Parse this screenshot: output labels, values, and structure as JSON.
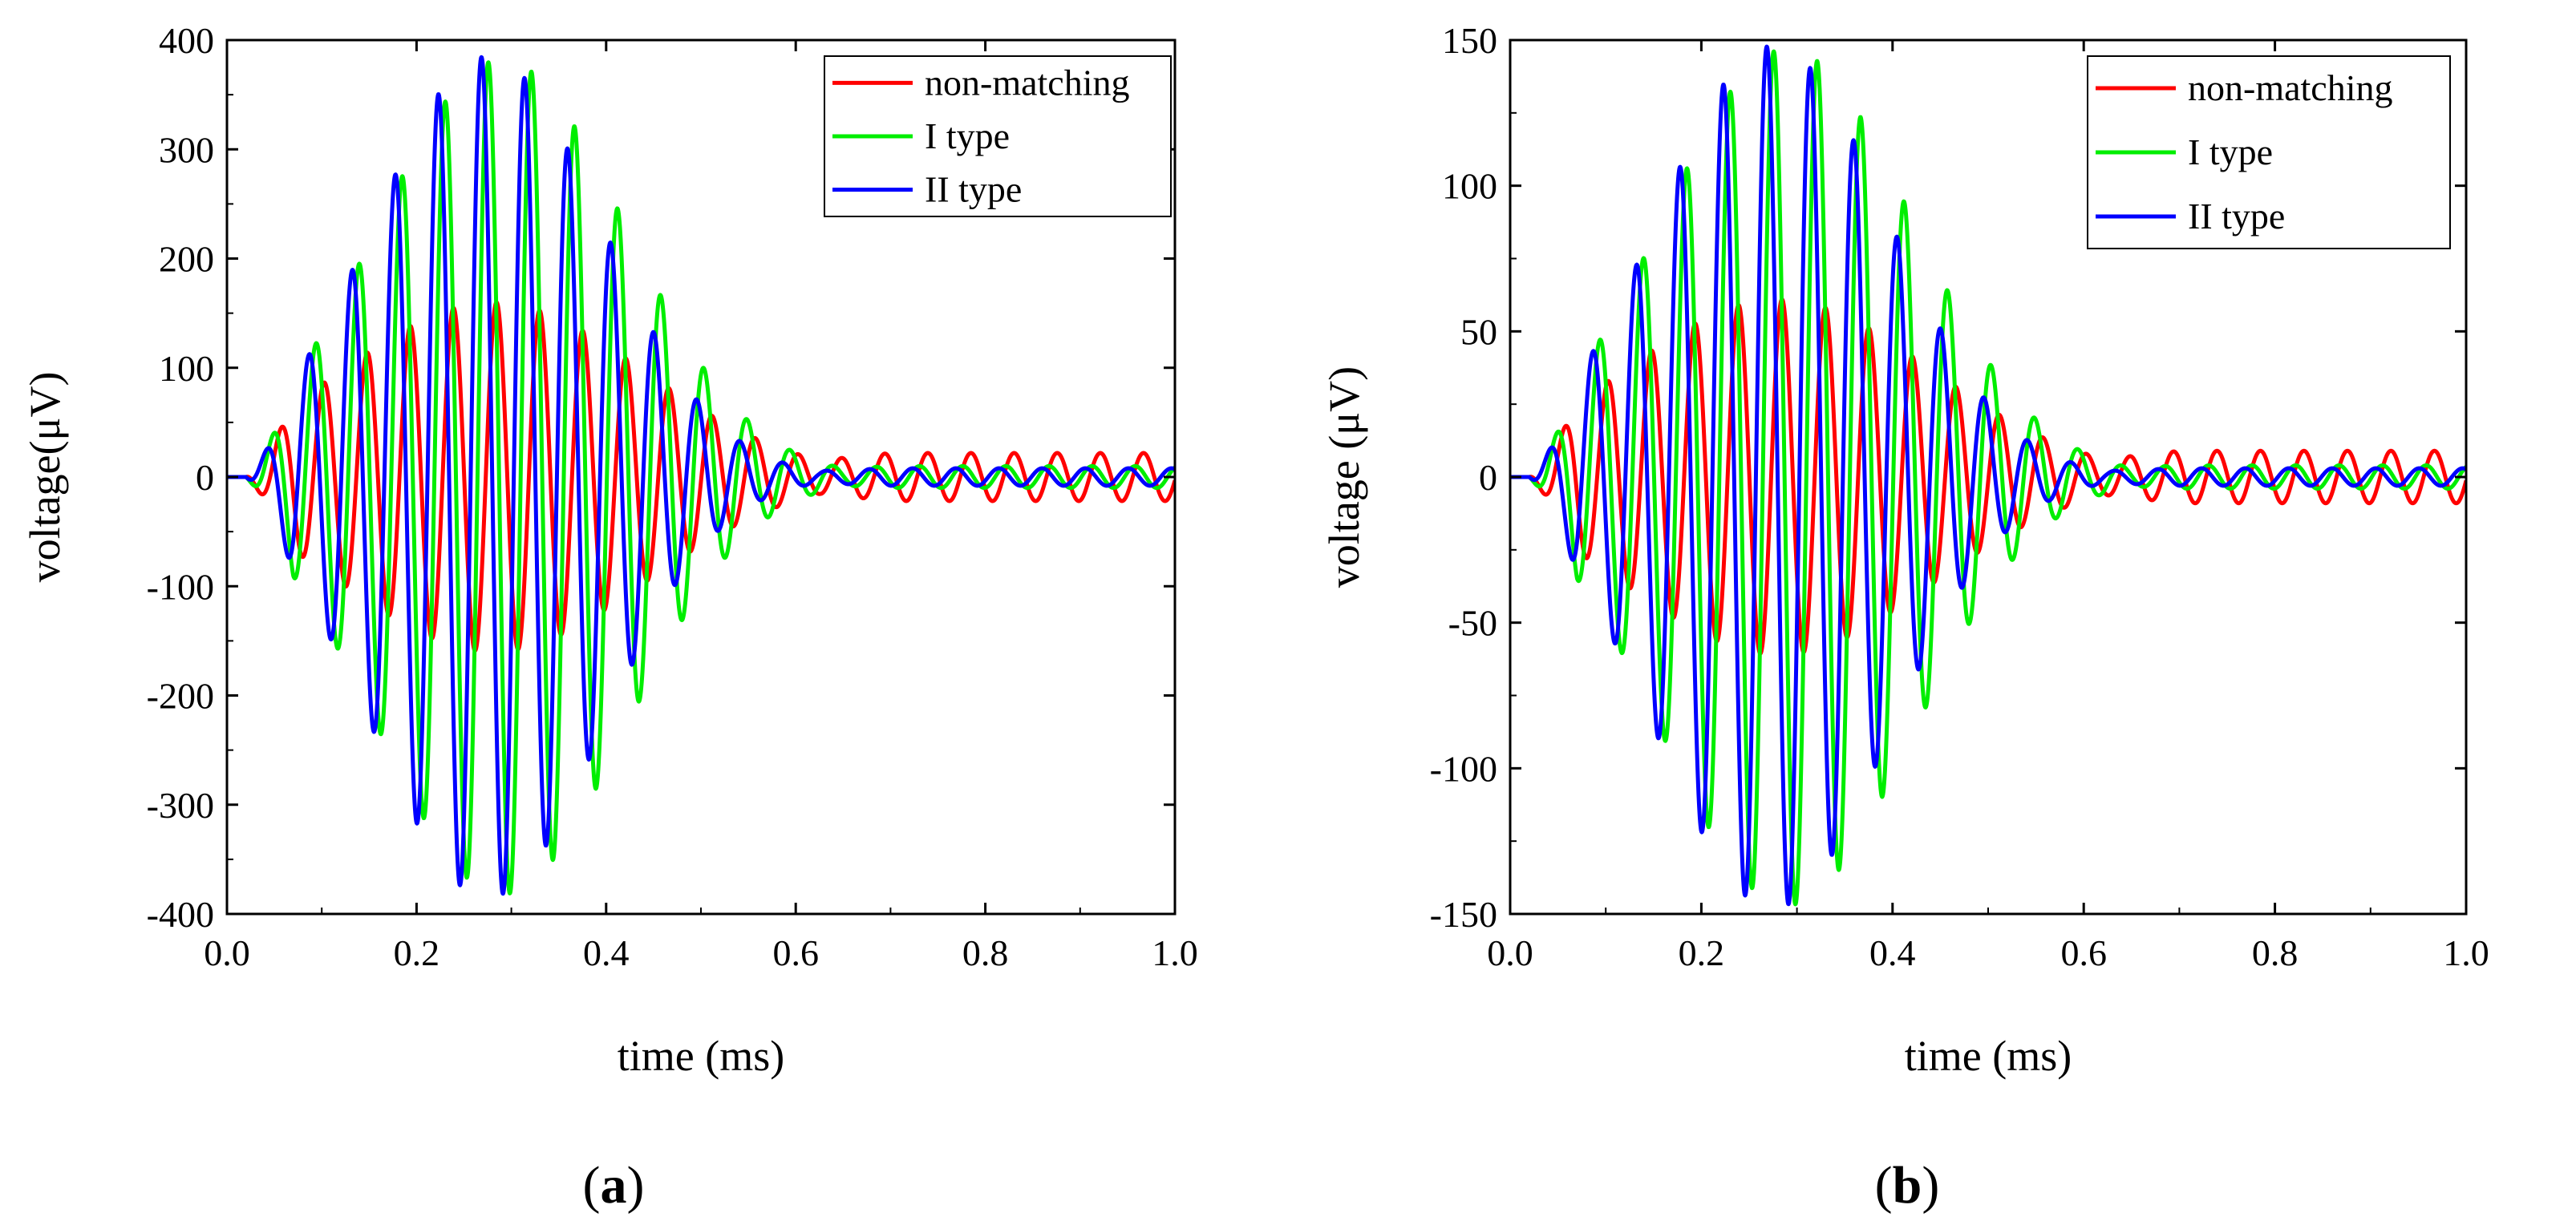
{
  "chart_data": [
    {
      "type": "line",
      "caption": "(a)",
      "caption_letter": "a",
      "title": "",
      "xlabel": "time (ms)",
      "ylabel": "voltage(μV)",
      "xlim": [
        0.0,
        1.0
      ],
      "ylim": [
        -400,
        400
      ],
      "xticks": [
        "0.0",
        "0.2",
        "0.4",
        "0.6",
        "0.8",
        "1.0"
      ],
      "yticks": [
        "400",
        "300",
        "200",
        "100",
        "0",
        "-100",
        "-200",
        "-300",
        "-400"
      ],
      "legend_position": "top-right",
      "series": [
        {
          "name": "non-matching",
          "color": "#ff0000",
          "amplitude": 160,
          "peak_time": 0.28,
          "width": 0.16,
          "period": 0.0455,
          "phase": 0.0,
          "tail": 22
        },
        {
          "name": "I type",
          "color": "#00ee00",
          "amplitude": 382,
          "peak_time": 0.29,
          "width": 0.13,
          "period": 0.0455,
          "phase": 1.2,
          "tail": 10
        },
        {
          "name": "II type",
          "color": "#0000ff",
          "amplitude": 385,
          "peak_time": 0.275,
          "width": 0.12,
          "period": 0.0455,
          "phase": 2.2,
          "tail": 8
        }
      ]
    },
    {
      "type": "line",
      "caption": "(b)",
      "caption_letter": "b",
      "title": "",
      "xlabel": "time (ms)",
      "ylabel": "voltage (μV)",
      "xlim": [
        0.0,
        1.0
      ],
      "ylim": [
        -150,
        150
      ],
      "xticks": [
        "0.0",
        "0.2",
        "0.4",
        "0.6",
        "0.8",
        "1.0"
      ],
      "yticks": [
        "150",
        "100",
        "50",
        "0",
        "-50",
        "-100",
        "-150"
      ],
      "legend_position": "top-right",
      "series": [
        {
          "name": "non-matching",
          "color": "#ff0000",
          "amplitude": 61,
          "peak_time": 0.28,
          "width": 0.16,
          "period": 0.0455,
          "phase": 0.0,
          "tail": 9
        },
        {
          "name": "I type",
          "color": "#00ee00",
          "amplitude": 147,
          "peak_time": 0.29,
          "width": 0.13,
          "period": 0.0455,
          "phase": 1.2,
          "tail": 4
        },
        {
          "name": "II type",
          "color": "#0000ff",
          "amplitude": 148,
          "peak_time": 0.275,
          "width": 0.12,
          "period": 0.0455,
          "phase": 2.2,
          "tail": 3
        }
      ]
    }
  ]
}
